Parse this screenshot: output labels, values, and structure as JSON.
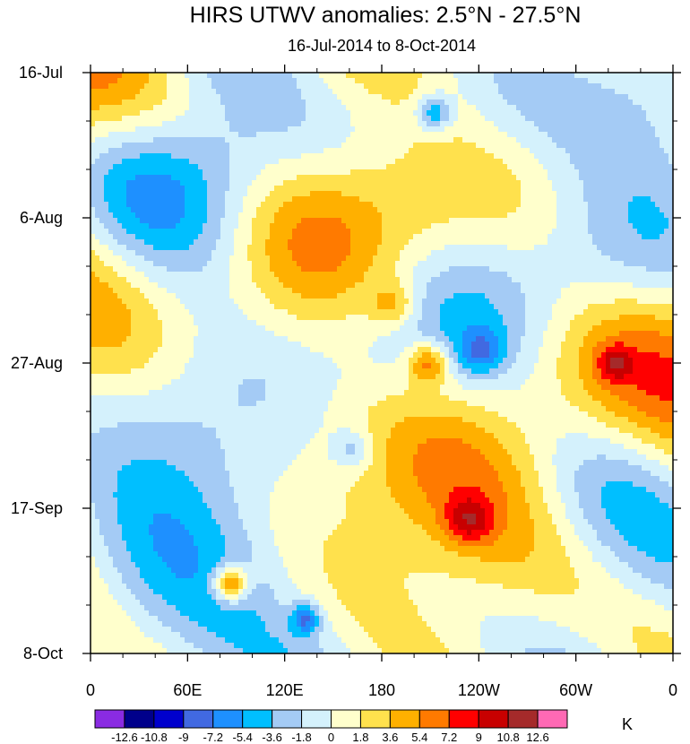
{
  "chart_data": {
    "type": "heatmap",
    "title": "HIRS UTWV anomalies: 2.5°N - 27.5°N",
    "subtitle": "16-Jul-2014 to 8-Oct-2014",
    "x_ticks": [
      "0",
      "60E",
      "120E",
      "180",
      "120W",
      "60W",
      "0"
    ],
    "x_range_lon_east": [
      0,
      360
    ],
    "y_ticks": [
      "16-Jul",
      "6-Aug",
      "27-Aug",
      "17-Sep",
      "8-Oct"
    ],
    "y_range_days": [
      0,
      84
    ],
    "colorbar_levels": [
      "-12.6",
      "-10.8",
      "-9",
      "-7.2",
      "-5.4",
      "-3.6",
      "-1.8",
      "0",
      "1.8",
      "3.6",
      "5.4",
      "7.2",
      "9",
      "10.8",
      "12.6"
    ],
    "colorbar_colors": [
      "#8a2be2",
      "#00008b",
      "#0000cd",
      "#4169e1",
      "#1e90ff",
      "#00bfff",
      "#a4cbf5",
      "#d4f1fc",
      "#ffffcc",
      "#ffe14d",
      "#ffb000",
      "#ff7a00",
      "#ff0000",
      "#c80000",
      "#a52a2a",
      "#ff69b4"
    ],
    "colorbar_unit": "K",
    "note": "Hovmöller diagram: longitude (x) vs time (y), anomaly field shaded with 16 color classes"
  }
}
